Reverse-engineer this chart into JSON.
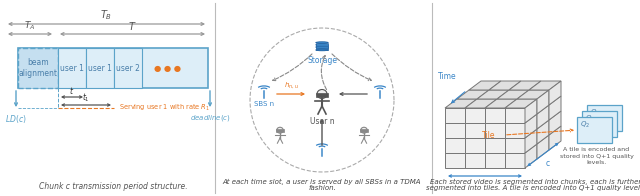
{
  "fig_width": 6.4,
  "fig_height": 1.96,
  "bg_color": "#ffffff",
  "panel1": {
    "caption": "Chunk c transmission period structure.",
    "box_color": "#ddeef8",
    "beam_bg": "#c5dff0",
    "box_edge_color": "#5ba3c9",
    "arrow_color": "#5ba3c9",
    "orange_color": "#e87722",
    "dark_arrow": "#888888",
    "text_color": "#404040",
    "blue_text": "#5ba3c9"
  },
  "panel2": {
    "caption1": "At each time slot, a user is served by all SBSs in a TDMA",
    "caption2": "fashion.",
    "storage_label": "Storage",
    "sbs_label": "SBS n",
    "user_label": "User n",
    "blue_color": "#3a86c8",
    "orange_color": "#e87722",
    "dark_color": "#555555"
  },
  "panel3": {
    "caption1": "Each stored video is segmented into chunks, each is further",
    "caption2": "segmented into tiles. A tile is encoded into Q+1 quality levels.",
    "tile_label": "Tile",
    "time_label": "Time",
    "chunk_label": "c",
    "annotation": "A tile is encoded and\nstored into Q+1 quality\nlevels.",
    "blue_color": "#3a86c8",
    "orange_color": "#e87722",
    "grid_color": "#777777",
    "face_color": "#f0f0f0",
    "top_color": "#e0e0e0",
    "side_color": "#e8e8e8"
  },
  "divider_color": "#bbbbbb"
}
